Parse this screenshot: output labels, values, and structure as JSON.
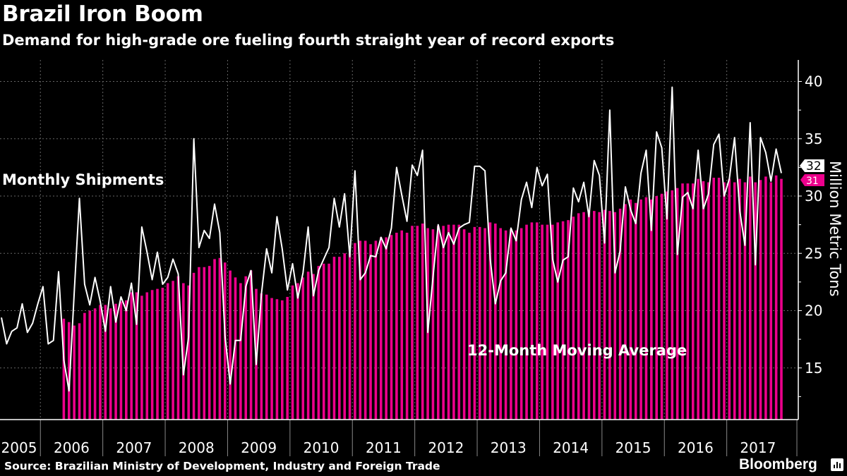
{
  "title": "Brazil Iron Boom",
  "subtitle": "Demand for high-grade ore fueling fourth straight year of record exports",
  "source": "Source: Brazilian Ministry of Development, Industry and Foreign Trade",
  "logo": "Bloomberg",
  "colors": {
    "bars": "#ec008c",
    "line": "#ffffff",
    "background": "#000000",
    "grid": "#666666"
  },
  "chart_data": {
    "type": "bar+line",
    "start_month": "2005-05",
    "ylabel": "Million Metric Tons",
    "ylim": [
      10.5,
      41.5
    ],
    "yticks": [
      15,
      20,
      25,
      30,
      35,
      40
    ],
    "years": [
      "2005",
      "2006",
      "2007",
      "2008",
      "2009",
      "2010",
      "2011",
      "2012",
      "2013",
      "2014",
      "2015",
      "2016",
      "2017"
    ],
    "grid": true,
    "annotations": {
      "line": "Monthly Shipments",
      "bars": "12-Month Moving Average"
    },
    "last_value_labels": {
      "line": "32",
      "bars": "31"
    },
    "series": [
      {
        "name": "Monthly Shipments",
        "type": "line",
        "values": [
          19.4,
          17.1,
          18.2,
          18.5,
          20.6,
          18.1,
          18.9,
          20.6,
          22.1,
          17.1,
          17.4,
          23.4,
          15.7,
          13.0,
          21.5,
          29.8,
          22.3,
          20.5,
          22.9,
          20.8,
          18.2,
          22.1,
          19.0,
          21.2,
          20.0,
          22.4,
          18.8,
          27.3,
          25.1,
          22.7,
          25.1,
          22.3,
          22.9,
          24.5,
          23.2,
          14.4,
          17.7,
          35.0,
          25.5,
          27.0,
          26.3,
          29.3,
          26.8,
          17.8,
          13.6,
          17.4,
          17.4,
          22.1,
          23.5,
          15.3,
          21.4,
          25.4,
          23.3,
          28.2,
          25.4,
          21.8,
          24.1,
          21.1,
          23.3,
          27.3,
          21.3,
          23.5,
          24.5,
          25.5,
          29.8,
          27.3,
          30.2,
          24.7,
          32.2,
          22.7,
          23.3,
          24.8,
          24.7,
          26.4,
          25.4,
          27.2,
          32.5,
          30.1,
          27.8,
          32.7,
          31.8,
          34.0,
          18.1,
          22.9,
          27.5,
          25.5,
          26.8,
          25.8,
          27.2,
          27.5,
          27.7,
          32.6,
          32.6,
          32.2,
          24.5,
          20.6,
          22.6,
          23.3,
          27.2,
          26.1,
          29.7,
          31.2,
          29.0,
          32.5,
          30.9,
          31.9,
          24.5,
          22.5,
          24.4,
          24.7,
          30.7,
          29.5,
          31.2,
          28.2,
          33.1,
          31.8,
          25.9,
          37.5,
          23.3,
          25.2,
          30.8,
          28.8,
          27.6,
          32.0,
          34.0,
          27.0,
          35.6,
          34.2,
          28.0,
          39.5,
          24.9,
          29.9,
          30.3,
          28.9,
          34.0,
          28.9,
          30.2,
          34.5,
          35.4,
          30.0,
          31.5,
          35.1,
          28.7,
          25.7,
          36.4,
          24.0,
          35.1,
          33.8,
          31.3,
          34.1,
          32.0
        ]
      },
      {
        "name": "12-Month Moving Average",
        "type": "bar",
        "values": [
          19.3,
          19.0,
          18.7,
          18.9,
          19.8,
          20.0,
          20.2,
          20.5,
          20.5,
          20.2,
          20.6,
          20.8,
          20.9,
          21.6,
          21.6,
          21.3,
          21.6,
          21.8,
          21.9,
          22.0,
          22.4,
          22.6,
          23.0,
          22.4,
          22.2,
          23.3,
          23.8,
          23.8,
          23.9,
          24.5,
          24.6,
          24.2,
          23.5,
          22.9,
          22.4,
          23.0,
          23.5,
          21.9,
          21.5,
          21.4,
          21.1,
          21.0,
          20.9,
          21.2,
          22.2,
          22.4,
          22.9,
          23.4,
          23.2,
          23.9,
          24.1,
          24.1,
          24.7,
          24.7,
          25.0,
          25.0,
          25.9,
          26.1,
          26.1,
          25.8,
          26.1,
          26.4,
          26.4,
          26.6,
          26.8,
          27.0,
          26.8,
          27.4,
          27.4,
          27.6,
          27.2,
          27.1,
          27.4,
          27.4,
          27.5,
          27.5,
          27.5,
          27.1,
          26.8,
          27.3,
          27.3,
          27.2,
          27.7,
          27.6,
          27.2,
          27.0,
          27.1,
          27.0,
          27.2,
          27.5,
          27.7,
          27.7,
          27.5,
          27.5,
          27.5,
          27.7,
          27.8,
          27.9,
          28.2,
          28.5,
          28.6,
          28.7,
          28.7,
          28.6,
          28.8,
          28.7,
          28.6,
          28.9,
          29.3,
          29.7,
          29.4,
          29.7,
          29.9,
          29.7,
          30.0,
          30.2,
          30.4,
          30.5,
          30.7,
          31.1,
          31.1,
          31.1,
          31.5,
          31.3,
          31.2,
          31.6,
          31.6,
          31.2,
          31.5,
          31.2,
          31.5,
          31.2,
          31.7,
          31.2,
          31.4,
          31.7,
          31.2,
          31.8,
          31.5
        ]
      }
    ]
  }
}
